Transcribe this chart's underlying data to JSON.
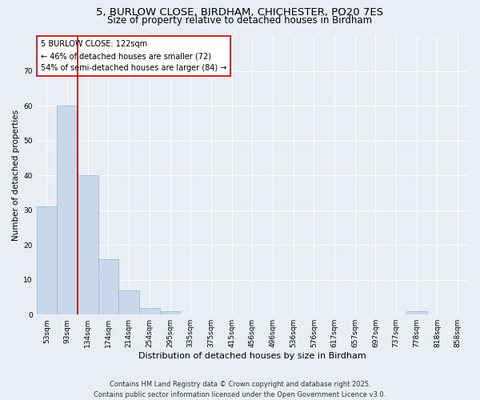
{
  "title_line1": "5, BURLOW CLOSE, BIRDHAM, CHICHESTER, PO20 7ES",
  "title_line2": "Size of property relative to detached houses in Birdham",
  "xlabel": "Distribution of detached houses by size in Birdham",
  "ylabel": "Number of detached properties",
  "bar_color": "#c8d8ea",
  "bar_edge_color": "#a0bcd0",
  "categories": [
    "53sqm",
    "93sqm",
    "134sqm",
    "174sqm",
    "214sqm",
    "254sqm",
    "295sqm",
    "335sqm",
    "375sqm",
    "415sqm",
    "456sqm",
    "496sqm",
    "536sqm",
    "576sqm",
    "617sqm",
    "657sqm",
    "697sqm",
    "737sqm",
    "778sqm",
    "818sqm",
    "858sqm"
  ],
  "values": [
    31,
    60,
    40,
    16,
    7,
    2,
    1,
    0,
    0,
    0,
    0,
    0,
    0,
    0,
    0,
    0,
    0,
    0,
    1,
    0,
    0
  ],
  "ylim": [
    0,
    80
  ],
  "yticks": [
    0,
    10,
    20,
    30,
    40,
    50,
    60,
    70
  ],
  "annotation_text": "5 BURLOW CLOSE: 122sqm\n← 46% of detached houses are smaller (72)\n54% of semi-detached houses are larger (84) →",
  "vline_x": 1.5,
  "vline_color": "#cc0000",
  "annotation_box_color": "#ffffff",
  "annotation_box_edge": "#cc0000",
  "footer_line1": "Contains HM Land Registry data © Crown copyright and database right 2025.",
  "footer_line2": "Contains public sector information licensed under the Open Government Licence v3.0.",
  "background_color": "#e8eef4",
  "grid_color": "#ffffff",
  "title1_fontsize": 9.5,
  "title2_fontsize": 8.5,
  "xlabel_fontsize": 8,
  "ylabel_fontsize": 7.5,
  "tick_fontsize": 6.5,
  "annot_fontsize": 7,
  "footer_fontsize": 6
}
